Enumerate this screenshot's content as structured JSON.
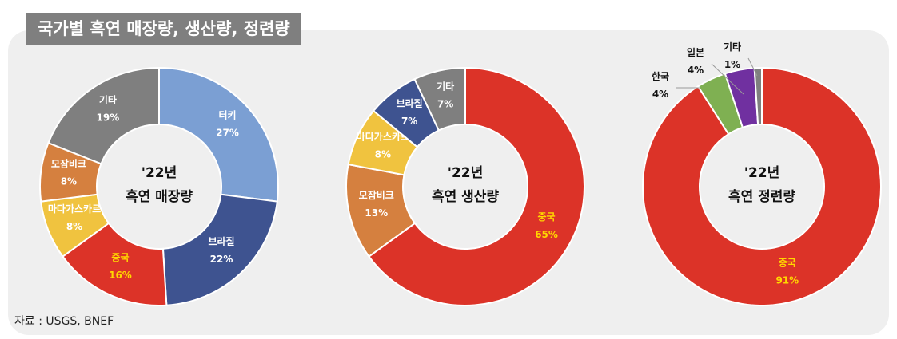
{
  "header": {
    "title": "국가별 흑연 매장량, 생산량, 정련량"
  },
  "source": "자료 : USGS, BNEF",
  "chart_data": [
    {
      "type": "pie",
      "center_label": [
        "'22년",
        "흑연 매장량"
      ],
      "categories": [
        "터키",
        "브라질",
        "중국",
        "마다가스카르",
        "모잠비크",
        "기타"
      ],
      "values": [
        27,
        22,
        16,
        8,
        8,
        19
      ],
      "value_labels": [
        "27%",
        "22%",
        "16%",
        "8%",
        "8%",
        "19%"
      ],
      "colors": [
        "#7b9fd3",
        "#3e5390",
        "#dc3328",
        "#f0c33f",
        "#d5803f",
        "#7f7f7f"
      ],
      "label_colors": [
        "#ffffff",
        "#ffffff",
        "#ffd700",
        "#ffffff",
        "#ffffff",
        "#ffffff"
      ]
    },
    {
      "type": "pie",
      "center_label": [
        "'22년",
        "흑연 생산량"
      ],
      "categories": [
        "중국",
        "모잠비크",
        "마다가스카르",
        "브라질",
        "기타"
      ],
      "values": [
        65,
        13,
        8,
        7,
        7
      ],
      "value_labels": [
        "65%",
        "13%",
        "8%",
        "7%",
        "7%"
      ],
      "colors": [
        "#dc3328",
        "#d5803f",
        "#f0c33f",
        "#3e5390",
        "#7f7f7f"
      ],
      "label_colors": [
        "#ffd700",
        "#ffffff",
        "#ffffff",
        "#ffffff",
        "#ffffff"
      ]
    },
    {
      "type": "pie",
      "center_label": [
        "'22년",
        "흑연 정련량"
      ],
      "categories": [
        "중국",
        "한국",
        "일본",
        "기타"
      ],
      "values": [
        91,
        4,
        4,
        1
      ],
      "value_labels": [
        "91%",
        "4%",
        "4%",
        "1%"
      ],
      "colors": [
        "#dc3328",
        "#7fb052",
        "#7030a0",
        "#7f7f7f"
      ],
      "label_colors": [
        "#ffd700",
        "#111111",
        "#111111",
        "#111111"
      ]
    }
  ]
}
